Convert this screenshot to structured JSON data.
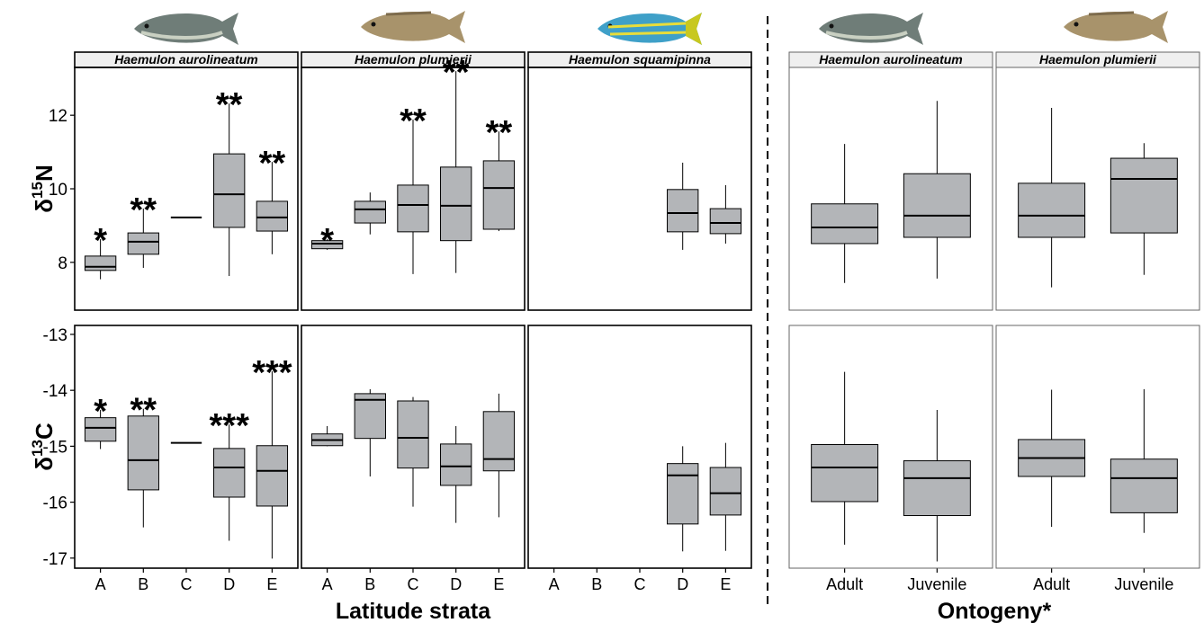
{
  "chart_data": {
    "type": "box",
    "rows": [
      {
        "ylabel": {
          "symbol": "δ",
          "isotope": "15",
          "element": "N"
        },
        "ylim": [
          6.7,
          13.3
        ],
        "yticks": [
          8,
          10,
          12
        ]
      },
      {
        "ylabel": {
          "symbol": "δ",
          "isotope": "13",
          "element": "C"
        },
        "ylim": [
          -17.18,
          -12.84
        ],
        "yticks": [
          -17,
          -16,
          -15,
          -14,
          -13
        ]
      }
    ],
    "groups": [
      {
        "x_title": "Latitude strata",
        "panels": [
          {
            "title": "Haemulon aurolineatum",
            "categories": [
              "A",
              "B",
              "C",
              "D",
              "E"
            ],
            "boxes": [
              [
                [
                  7.54,
                  7.78,
                  7.88,
                  8.17,
                  8.63
                ],
                [
                  7.85,
                  8.22,
                  8.56,
                  8.8,
                  9.46
                ],
                9.22,
                [
                  7.63,
                  8.95,
                  9.85,
                  10.95,
                  12.32
                ],
                [
                  8.22,
                  8.85,
                  9.22,
                  9.66,
                  10.73
                ]
              ],
              [
                [
                  -15.05,
                  -14.91,
                  -14.67,
                  -14.49,
                  -14.35
                ],
                [
                  -16.45,
                  -15.78,
                  -15.25,
                  -14.46,
                  -14.33
                ],
                -14.94,
                [
                  -16.69,
                  -15.91,
                  -15.38,
                  -15.04,
                  -14.61
                ],
                [
                  -17.01,
                  -16.07,
                  -15.44,
                  -14.99,
                  -13.66
                ]
              ]
            ],
            "significance": [
              [
                "*",
                "**",
                null,
                "**",
                "**"
              ],
              [
                "*",
                "**",
                null,
                "***",
                "***"
              ]
            ]
          },
          {
            "title": "Haemulon plumierii",
            "categories": [
              "A",
              "B",
              "C",
              "D",
              "E"
            ],
            "boxes": [
              [
                [
                  8.34,
                  8.37,
                  8.51,
                  8.59,
                  8.63
                ],
                [
                  8.76,
                  9.07,
                  9.44,
                  9.66,
                  9.9
                ],
                [
                  7.68,
                  8.83,
                  9.56,
                  10.1,
                  11.88
                ],
                [
                  7.71,
                  8.59,
                  9.54,
                  10.59,
                  13.2
                ],
                [
                  8.85,
                  8.9,
                  10.02,
                  10.76,
                  11.56
                ]
              ],
              [
                [
                  -15.0,
                  -14.99,
                  -14.89,
                  -14.78,
                  -14.64
                ],
                [
                  -15.54,
                  -14.86,
                  -14.17,
                  -14.06,
                  -13.98
                ],
                [
                  -16.08,
                  -15.39,
                  -14.85,
                  -14.19,
                  -14.12
                ],
                [
                  -16.37,
                  -15.7,
                  -15.36,
                  -14.96,
                  -14.64
                ],
                [
                  -16.27,
                  -15.44,
                  -15.23,
                  -14.38,
                  -14.06
                ]
              ]
            ],
            "significance": [
              [
                "*",
                null,
                "**",
                "**",
                "**"
              ],
              [
                null,
                null,
                null,
                null,
                null
              ]
            ]
          },
          {
            "title": "Haemulon squamipinna",
            "categories": [
              "A",
              "B",
              "C",
              "D",
              "E"
            ],
            "boxes": [
              [
                null,
                null,
                null,
                [
                  8.34,
                  8.83,
                  9.34,
                  9.98,
                  10.71
                ],
                [
                  8.51,
                  8.78,
                  9.07,
                  9.46,
                  10.1
                ]
              ],
              [
                null,
                null,
                null,
                [
                  -16.88,
                  -16.39,
                  -15.52,
                  -15.31,
                  -15.0
                ],
                [
                  -16.87,
                  -16.23,
                  -15.84,
                  -15.38,
                  -14.94
                ]
              ]
            ],
            "significance": [
              [
                null,
                null,
                null,
                null,
                null
              ],
              [
                null,
                null,
                null,
                null,
                null
              ]
            ]
          }
        ]
      },
      {
        "x_title": "Ontogeny*",
        "panels": [
          {
            "title": "Haemulon aurolineatum",
            "categories": [
              "Adult",
              "Juvenile"
            ],
            "boxes": [
              [
                [
                  7.44,
                  8.51,
                  8.95,
                  9.59,
                  11.22
                ],
                [
                  7.56,
                  8.68,
                  9.27,
                  10.41,
                  12.39
                ]
              ],
              [
                [
                  -16.76,
                  -15.99,
                  -15.38,
                  -14.97,
                  -13.67
                ],
                [
                  -17.06,
                  -16.24,
                  -15.57,
                  -15.26,
                  -14.35
                ]
              ]
            ]
          },
          {
            "title": "Haemulon plumierii",
            "categories": [
              "Adult",
              "Juvenile"
            ],
            "boxes": [
              [
                [
                  7.32,
                  8.68,
                  9.27,
                  10.15,
                  12.2
                ],
                [
                  7.66,
                  8.8,
                  10.27,
                  10.83,
                  11.24
                ]
              ],
              [
                [
                  -16.44,
                  -15.54,
                  -15.21,
                  -14.88,
                  -13.99
                ],
                [
                  -16.55,
                  -16.19,
                  -15.57,
                  -15.23,
                  -13.98
                ]
              ]
            ]
          }
        ]
      }
    ]
  }
}
